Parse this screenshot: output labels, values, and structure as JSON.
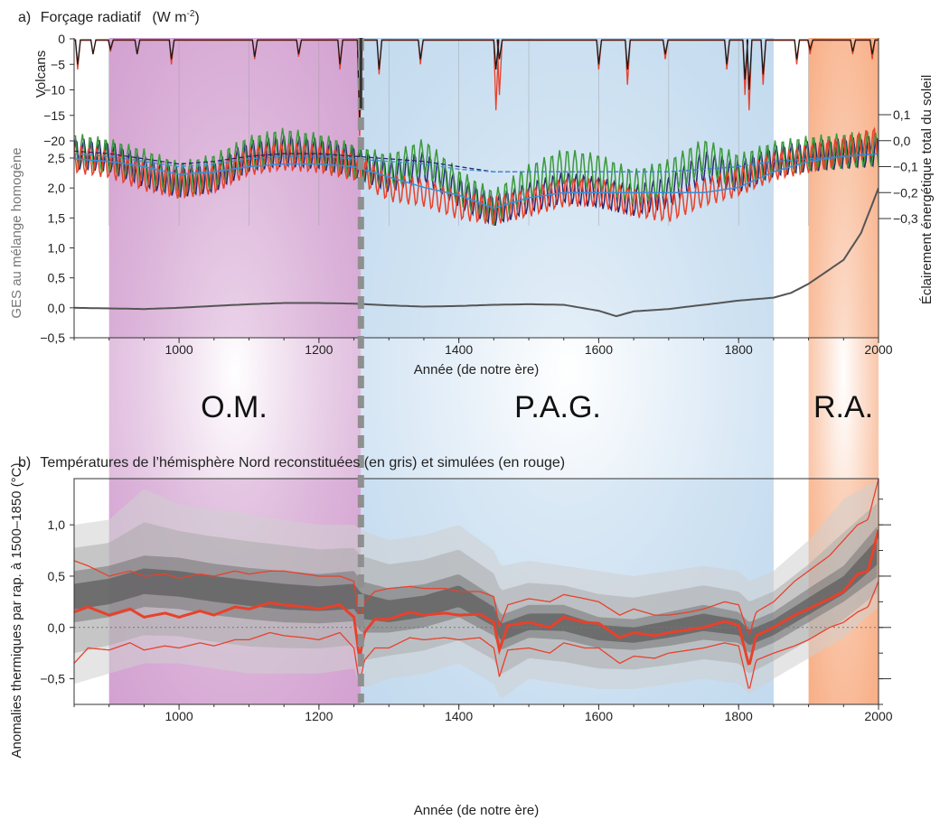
{
  "colors": {
    "om_band": "#c98cc6",
    "pag_band": "#b7d3ec",
    "ra_band": "#f7a679",
    "reconstruction_shade": "#4a4a4a",
    "simulation_red": "#e8412b",
    "volcanic_black": "#1a1a1a",
    "solar_green": "#3a9a3a",
    "solar_navy": "#2a2470",
    "solar_blue": "#3b8fd6",
    "ghg_gray": "#555555",
    "divider_gray": "#8f8f8f"
  },
  "periods": [
    {
      "label": "O.M.",
      "start": 900,
      "end": 1260,
      "color_key": "om_band"
    },
    {
      "label": "P.A.G.",
      "start": 1260,
      "end": 1850,
      "color_key": "pag_band"
    },
    {
      "label": "R.A.",
      "start": 1900,
      "end": 2000,
      "color_key": "ra_band"
    }
  ],
  "divider_year": 1260,
  "chart_data": [
    {
      "type": "line",
      "title_prefix": "a)",
      "title_text": "Forçage radiatif",
      "title_unit": "(W m",
      "title_unit_exp": "-2",
      "title_unit_close": ")",
      "xlabel": "Année (de notre ère)",
      "xlim": [
        850,
        2000
      ],
      "xticks": [
        1000,
        1200,
        1400,
        1600,
        1800,
        2000
      ],
      "panels": [
        {
          "name": "volcanic",
          "ylabel": "Volcans",
          "ylim": [
            -20,
            0
          ],
          "yticks": [
            0,
            -5,
            -10,
            -15,
            -20
          ],
          "series": [
            {
              "color_key": "simulation_red",
              "baseline": -0.3,
              "events": [
                [
                  855,
                  -6
                ],
                [
                  877,
                  -3
                ],
                [
                  902,
                  -2.5
                ],
                [
                  940,
                  -3
                ],
                [
                  989,
                  -5
                ],
                [
                  1108,
                  -4
                ],
                [
                  1171,
                  -3.5
                ],
                [
                  1230,
                  -6
                ],
                [
                  1258,
                  -19
                ],
                [
                  1286,
                  -7
                ],
                [
                  1345,
                  -5
                ],
                [
                  1453,
                  -14
                ],
                [
                  1458,
                  -11
                ],
                [
                  1600,
                  -6
                ],
                [
                  1641,
                  -9
                ],
                [
                  1695,
                  -4
                ],
                [
                  1783,
                  -6
                ],
                [
                  1809,
                  -11
                ],
                [
                  1815,
                  -14
                ],
                [
                  1835,
                  -9
                ],
                [
                  1883,
                  -5
                ],
                [
                  1902,
                  -3
                ],
                [
                  1963,
                  -3
                ],
                [
                  1991,
                  -4
                ]
              ]
            },
            {
              "color_key": "volcanic_black",
              "baseline": -0.2,
              "events": [
                [
                  855,
                  -5
                ],
                [
                  877,
                  -3
                ],
                [
                  902,
                  -2
                ],
                [
                  940,
                  -3
                ],
                [
                  989,
                  -4
                ],
                [
                  1108,
                  -3.5
                ],
                [
                  1171,
                  -3
                ],
                [
                  1230,
                  -5
                ],
                [
                  1258,
                  -16
                ],
                [
                  1286,
                  -6
                ],
                [
                  1345,
                  -4
                ],
                [
                  1453,
                  -6
                ],
                [
                  1458,
                  -4
                ],
                [
                  1600,
                  -5
                ],
                [
                  1641,
                  -6
                ],
                [
                  1695,
                  -3
                ],
                [
                  1783,
                  -5
                ],
                [
                  1809,
                  -8
                ],
                [
                  1815,
                  -10
                ],
                [
                  1835,
                  -7
                ],
                [
                  1883,
                  -4
                ],
                [
                  1902,
                  -2
                ],
                [
                  1963,
                  -2.5
                ],
                [
                  1991,
                  -3
                ]
              ]
            }
          ]
        },
        {
          "name": "solar",
          "ylabel": "Éclairement énergétique total du soleil",
          "ylim": [
            -0.3,
            0.1
          ],
          "yticks": [
            0.1,
            0.0,
            -0.1,
            -0.2,
            -0.3
          ],
          "tick_labels": [
            "0,1",
            "0,0",
            "−0,1",
            "−0,2",
            "−0,3"
          ],
          "x": [
            850,
            900,
            950,
            1000,
            1050,
            1100,
            1150,
            1200,
            1250,
            1300,
            1350,
            1400,
            1450,
            1500,
            1550,
            1600,
            1650,
            1700,
            1750,
            1800,
            1850,
            1900,
            1950,
            2000
          ],
          "series": [
            {
              "color_key": "solar_navy",
              "dashed": false,
              "amplitude": 0.06,
              "values": [
                -0.05,
                -0.06,
                -0.12,
                -0.16,
                -0.14,
                -0.06,
                -0.04,
                -0.05,
                -0.08,
                -0.14,
                -0.1,
                -0.2,
                -0.27,
                -0.22,
                -0.18,
                -0.2,
                -0.23,
                -0.2,
                -0.1,
                -0.14,
                -0.08,
                -0.06,
                -0.05,
                -0.04
              ]
            },
            {
              "color_key": "solar_green",
              "dashed": false,
              "amplitude": 0.07,
              "values": [
                -0.04,
                -0.06,
                -0.1,
                -0.15,
                -0.12,
                -0.05,
                -0.02,
                -0.04,
                -0.08,
                -0.12,
                -0.06,
                -0.18,
                -0.26,
                -0.16,
                -0.1,
                -0.12,
                -0.18,
                -0.14,
                -0.06,
                -0.12,
                -0.07,
                -0.05,
                -0.04,
                -0.03
              ]
            },
            {
              "color_key": "simulation_red",
              "dashed": false,
              "amplitude": 0.055,
              "values": [
                -0.07,
                -0.09,
                -0.14,
                -0.17,
                -0.15,
                -0.08,
                -0.06,
                -0.07,
                -0.1,
                -0.18,
                -0.2,
                -0.25,
                -0.27,
                -0.24,
                -0.2,
                -0.2,
                -0.24,
                -0.26,
                -0.2,
                -0.16,
                -0.1,
                -0.07,
                -0.04,
                0.0
              ]
            },
            {
              "color_key": "solar_blue",
              "dashed": false,
              "amplitude": 0.0,
              "values": [
                -0.07,
                -0.08,
                -0.1,
                -0.13,
                -0.12,
                -0.1,
                -0.09,
                -0.09,
                -0.1,
                -0.14,
                -0.18,
                -0.21,
                -0.26,
                -0.22,
                -0.2,
                -0.2,
                -0.2,
                -0.2,
                -0.2,
                -0.18,
                -0.12,
                -0.08,
                -0.06,
                -0.05
              ]
            },
            {
              "color_key": "solar_navy",
              "dashed": true,
              "amplitude": 0.0,
              "values": [
                -0.04,
                -0.05,
                -0.07,
                -0.09,
                -0.08,
                -0.06,
                -0.05,
                -0.05,
                -0.06,
                -0.07,
                -0.08,
                -0.1,
                -0.12,
                -0.12,
                -0.12,
                -0.12,
                -0.12,
                -0.12,
                -0.11,
                -0.1,
                -0.08,
                -0.07,
                -0.06,
                -0.05
              ]
            },
            {
              "color_key": "solar_blue",
              "dashed": true,
              "amplitude": 0.0,
              "values": [
                -0.05,
                -0.06,
                -0.08,
                -0.1,
                -0.09,
                -0.07,
                -0.06,
                -0.06,
                -0.07,
                -0.08,
                -0.09,
                -0.11,
                -0.12,
                -0.12,
                -0.12,
                -0.12,
                -0.12,
                -0.12,
                -0.11,
                -0.1,
                -0.08,
                -0.07,
                -0.06,
                -0.05
              ]
            }
          ]
        },
        {
          "name": "ghg",
          "ylabel": "GES au mélange homogène",
          "ylim": [
            -0.5,
            2.5
          ],
          "yticks": [
            2.5,
            2.0,
            1.5,
            1.0,
            0.5,
            0.0,
            -0.5
          ],
          "tick_labels": [
            "2,5",
            "2,0",
            "1,5",
            "1,0",
            "0,5",
            "0,0",
            "−0,5"
          ],
          "series": [
            {
              "color_key": "ghg_gray",
              "x": [
                850,
                900,
                950,
                1000,
                1050,
                1100,
                1150,
                1200,
                1250,
                1300,
                1350,
                1400,
                1450,
                1500,
                1550,
                1600,
                1625,
                1650,
                1700,
                1750,
                1800,
                1850,
                1875,
                1900,
                1925,
                1950,
                1975,
                2000
              ],
              "values": [
                0.0,
                -0.01,
                -0.02,
                0.0,
                0.03,
                0.06,
                0.08,
                0.08,
                0.07,
                0.04,
                0.02,
                0.03,
                0.05,
                0.06,
                0.05,
                -0.05,
                -0.14,
                -0.06,
                -0.02,
                0.05,
                0.12,
                0.17,
                0.25,
                0.4,
                0.6,
                0.8,
                1.25,
                2.0
              ]
            }
          ]
        }
      ]
    },
    {
      "type": "area",
      "title_prefix": "b)",
      "title_text": "Températures de l’hémisphère Nord reconstituées (en gris) et simulées (en rouge)",
      "xlabel": "Année (de notre ère)",
      "ylabel": "Anomalies thermiques par rap. à 1500–1850 (°C)",
      "xlim": [
        850,
        2000
      ],
      "ylim": [
        -0.75,
        1.45
      ],
      "xticks": [
        1000,
        1200,
        1400,
        1600,
        1800,
        2000
      ],
      "yticks": [
        1.0,
        0.5,
        0.0,
        -0.5
      ],
      "tick_labels": [
        "1,0",
        "0,5",
        "0,0",
        "−0,5"
      ],
      "reconstruction": {
        "x": [
          850,
          900,
          950,
          1000,
          1050,
          1100,
          1150,
          1200,
          1250,
          1260,
          1300,
          1350,
          1400,
          1450,
          1460,
          1500,
          1550,
          1600,
          1650,
          1700,
          1750,
          1800,
          1815,
          1850,
          1900,
          1950,
          2000
        ],
        "median": [
          0.3,
          0.35,
          0.45,
          0.42,
          0.38,
          0.34,
          0.3,
          0.28,
          0.3,
          0.22,
          0.15,
          0.2,
          0.3,
          0.1,
          -0.05,
          0.05,
          0.05,
          -0.05,
          -0.08,
          -0.02,
          0.05,
          0.0,
          -0.1,
          0.0,
          0.2,
          0.4,
          0.75
        ],
        "inner_low": [
          0.05,
          0.1,
          0.2,
          0.18,
          0.12,
          0.08,
          0.05,
          0.04,
          0.06,
          -0.05,
          -0.05,
          0.0,
          0.1,
          -0.08,
          -0.22,
          -0.1,
          -0.12,
          -0.2,
          -0.22,
          -0.18,
          -0.12,
          -0.15,
          -0.25,
          -0.15,
          0.05,
          0.25,
          0.5
        ],
        "inner_high": [
          0.55,
          0.6,
          0.7,
          0.68,
          0.62,
          0.58,
          0.55,
          0.52,
          0.55,
          0.45,
          0.38,
          0.42,
          0.52,
          0.3,
          0.12,
          0.22,
          0.22,
          0.1,
          0.08,
          0.15,
          0.22,
          0.15,
          0.05,
          0.15,
          0.38,
          0.6,
          1.0
        ],
        "outer_low": [
          -0.55,
          -0.45,
          -0.35,
          -0.35,
          -0.4,
          -0.45,
          -0.45,
          -0.45,
          -0.4,
          -0.6,
          -0.5,
          -0.45,
          -0.35,
          -0.55,
          -0.7,
          -0.5,
          -0.55,
          -0.6,
          -0.6,
          -0.55,
          -0.5,
          -0.55,
          -0.65,
          -0.5,
          -0.3,
          -0.1,
          0.2
        ],
        "outer_high": [
          1.0,
          1.05,
          1.35,
          1.2,
          1.15,
          1.1,
          1.05,
          1.0,
          1.0,
          0.95,
          0.85,
          0.9,
          1.0,
          0.75,
          0.6,
          0.65,
          0.6,
          0.55,
          0.5,
          0.55,
          0.6,
          0.55,
          0.45,
          0.55,
          0.85,
          1.25,
          1.45
        ]
      },
      "simulation": {
        "x": [
          850,
          870,
          900,
          930,
          950,
          980,
          1000,
          1030,
          1050,
          1080,
          1100,
          1130,
          1150,
          1180,
          1200,
          1230,
          1250,
          1258,
          1265,
          1280,
          1300,
          1330,
          1350,
          1380,
          1400,
          1430,
          1450,
          1458,
          1470,
          1500,
          1530,
          1550,
          1580,
          1600,
          1630,
          1650,
          1680,
          1700,
          1730,
          1750,
          1780,
          1800,
          1815,
          1825,
          1850,
          1880,
          1900,
          1930,
          1950,
          1970,
          1985,
          2000
        ],
        "mean": [
          0.15,
          0.2,
          0.12,
          0.18,
          0.1,
          0.14,
          0.1,
          0.16,
          0.12,
          0.2,
          0.18,
          0.24,
          0.22,
          0.2,
          0.18,
          0.22,
          0.1,
          -0.3,
          -0.05,
          0.08,
          0.08,
          0.15,
          0.12,
          0.14,
          0.12,
          0.13,
          0.05,
          -0.22,
          0.02,
          0.05,
          0.0,
          0.1,
          0.05,
          0.04,
          -0.1,
          -0.05,
          -0.08,
          -0.05,
          -0.02,
          0.0,
          0.06,
          0.02,
          -0.38,
          -0.08,
          0.0,
          0.12,
          0.18,
          0.28,
          0.35,
          0.52,
          0.55,
          0.95
        ],
        "upper": [
          0.65,
          0.6,
          0.5,
          0.55,
          0.5,
          0.52,
          0.48,
          0.52,
          0.5,
          0.55,
          0.52,
          0.55,
          0.55,
          0.52,
          0.5,
          0.5,
          0.45,
          0.05,
          0.25,
          0.35,
          0.38,
          0.4,
          0.38,
          0.38,
          0.35,
          0.35,
          0.3,
          0.0,
          0.22,
          0.28,
          0.25,
          0.32,
          0.28,
          0.25,
          0.12,
          0.18,
          0.12,
          0.12,
          0.15,
          0.18,
          0.25,
          0.22,
          -0.08,
          0.15,
          0.25,
          0.45,
          0.55,
          0.7,
          0.85,
          1.0,
          1.05,
          1.45
        ],
        "lower": [
          -0.35,
          -0.2,
          -0.22,
          -0.15,
          -0.22,
          -0.18,
          -0.2,
          -0.15,
          -0.18,
          -0.12,
          -0.12,
          -0.05,
          -0.08,
          -0.1,
          -0.12,
          -0.05,
          -0.2,
          -0.55,
          -0.32,
          -0.2,
          -0.2,
          -0.1,
          -0.12,
          -0.1,
          -0.12,
          -0.1,
          -0.2,
          -0.48,
          -0.22,
          -0.2,
          -0.25,
          -0.15,
          -0.2,
          -0.2,
          -0.35,
          -0.28,
          -0.3,
          -0.25,
          -0.22,
          -0.2,
          -0.15,
          -0.18,
          -0.62,
          -0.32,
          -0.25,
          -0.18,
          -0.12,
          0.0,
          0.05,
          0.15,
          0.2,
          0.45
        ]
      }
    }
  ]
}
